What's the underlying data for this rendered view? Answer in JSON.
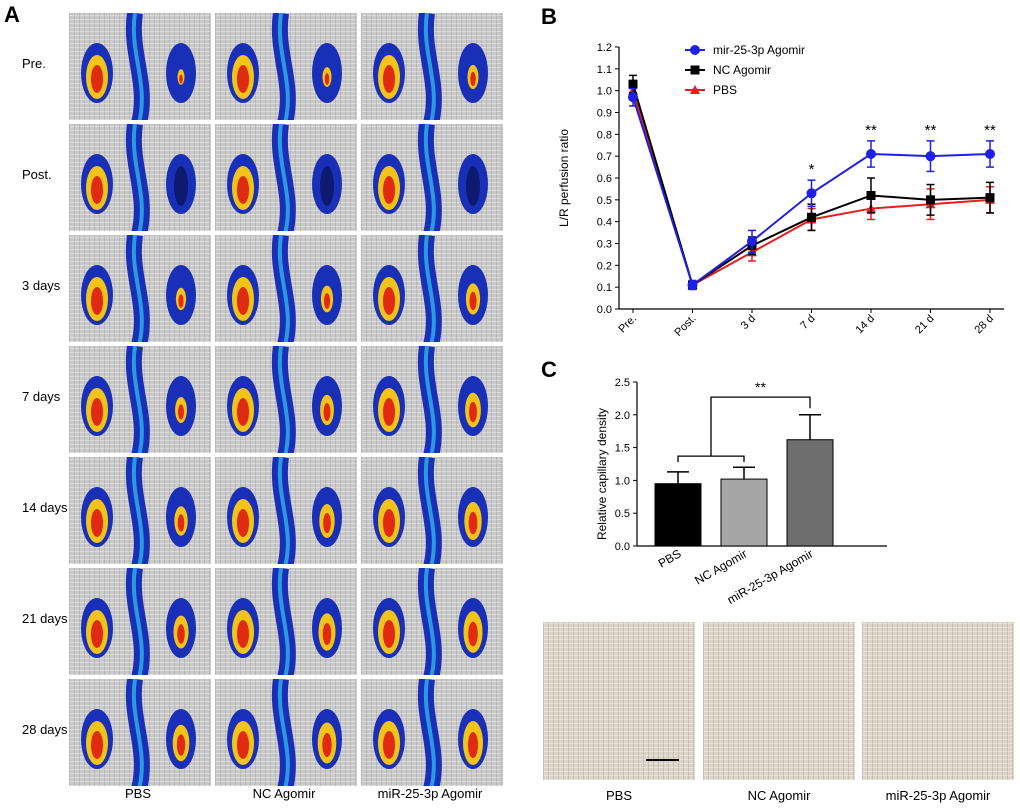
{
  "panels": {
    "a": "A",
    "b": "B",
    "c": "C"
  },
  "panel_a": {
    "rows": [
      "Pre.",
      "Post.",
      "3 days",
      "7 days",
      "14 days",
      "21 days",
      "28 days"
    ],
    "columns": [
      "PBS",
      "NC Agomir",
      "miR-25-3p Agomir"
    ]
  },
  "chart_data": [
    {
      "id": "B",
      "type": "line",
      "ylabel": "L/R perfusion ratio",
      "xlabel": "",
      "categories": [
        "Pre.",
        "Post.",
        "3 d",
        "7 d",
        "14 d",
        "21 d",
        "28 d"
      ],
      "ylim": [
        0,
        1.2
      ],
      "yticks": [
        "0.0",
        "0.1",
        "0.2",
        "0.3",
        "0.4",
        "0.5",
        "0.6",
        "0.7",
        "0.8",
        "0.9",
        "1.0",
        "1.1",
        "1.2"
      ],
      "series": [
        {
          "name": "mir-25-3p Agomir",
          "color": "#1f1fe6",
          "marker": "circle",
          "values": [
            0.97,
            0.11,
            0.31,
            0.53,
            0.71,
            0.7,
            0.71
          ],
          "errors": [
            0.04,
            0.02,
            0.05,
            0.06,
            0.06,
            0.07,
            0.06
          ]
        },
        {
          "name": "NC Agomir",
          "color": "#000000",
          "marker": "square",
          "values": [
            1.03,
            0.11,
            0.29,
            0.42,
            0.52,
            0.5,
            0.51
          ],
          "errors": [
            0.04,
            0.02,
            0.04,
            0.06,
            0.08,
            0.07,
            0.07
          ]
        },
        {
          "name": "PBS",
          "color": "#e61e1e",
          "marker": "triangle",
          "values": [
            1.0,
            0.11,
            0.26,
            0.41,
            0.46,
            0.48,
            0.5
          ],
          "errors": [
            0.04,
            0.02,
            0.04,
            0.05,
            0.05,
            0.07,
            0.06
          ]
        }
      ],
      "annotations": [
        {
          "category": "7 d",
          "text": "*"
        },
        {
          "category": "14 d",
          "text": "**"
        },
        {
          "category": "21 d",
          "text": "**"
        },
        {
          "category": "28 d",
          "text": "**"
        }
      ]
    },
    {
      "id": "C",
      "type": "bar",
      "ylabel": "Relative capillary density",
      "xlabel": "",
      "categories": [
        "PBS",
        "NC Agomir",
        "miR-25-3p Agomir"
      ],
      "values": [
        0.95,
        1.02,
        1.62
      ],
      "errors": [
        0.18,
        0.18,
        0.38
      ],
      "colors": [
        "#000000",
        "#a6a6a6",
        "#6e6e6e"
      ],
      "ylim": [
        0,
        2.5
      ],
      "yticks": [
        "0.0",
        "0.5",
        "1.0",
        "1.5",
        "2.0",
        "2.5"
      ],
      "significance": "**"
    }
  ],
  "panel_c_images": {
    "labels": [
      "PBS",
      "NC Agomir",
      "miR-25-3p Agomir"
    ]
  }
}
